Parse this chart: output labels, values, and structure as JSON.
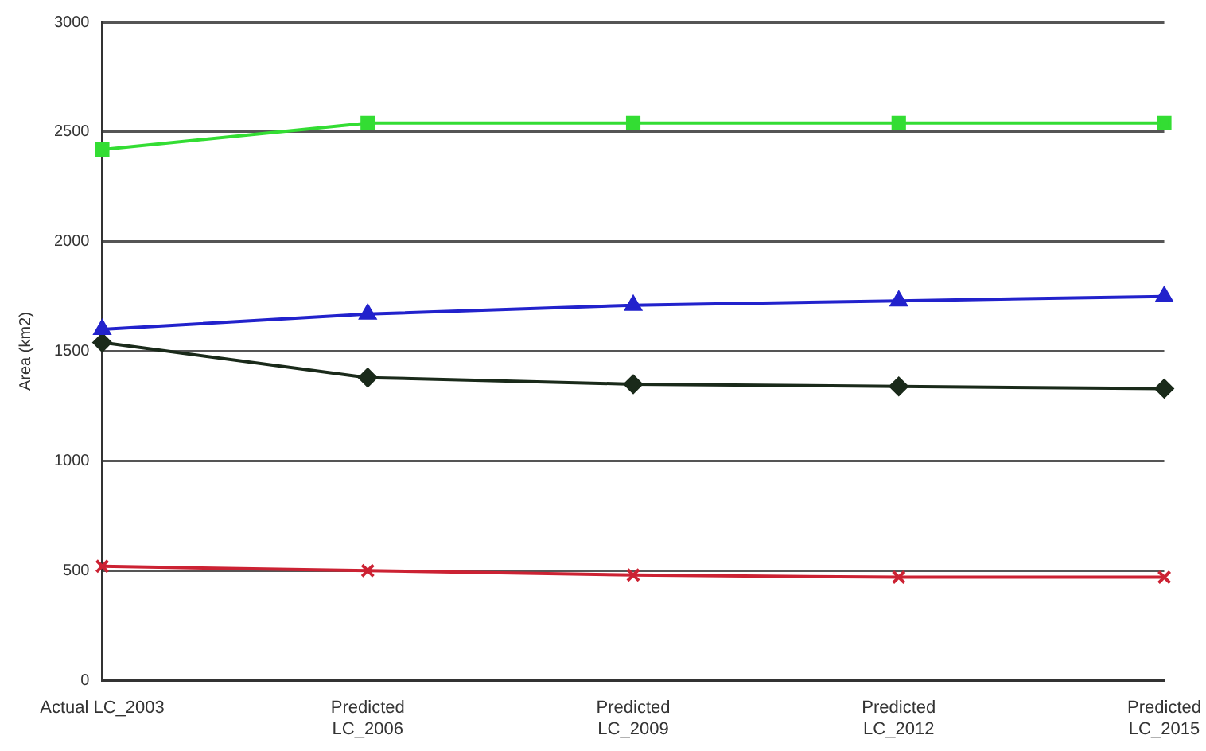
{
  "chart_data": {
    "type": "line",
    "ylabel": "Area (km2)",
    "categories": [
      "Actual LC_2003",
      "Predicted\nLC_2006",
      "Predicted\nLC_2009",
      "Predicted\nLC_2012",
      "Predicted\nLC_2015"
    ],
    "series": [
      {
        "color": "#33dd33",
        "marker": "square",
        "values": [
          2420,
          2540,
          2540,
          2540,
          2540
        ]
      },
      {
        "color": "#2222cc",
        "marker": "triangle",
        "values": [
          1600,
          1670,
          1710,
          1730,
          1750
        ]
      },
      {
        "color": "#1a2a1a",
        "marker": "diamond",
        "values": [
          1540,
          1380,
          1350,
          1340,
          1330
        ]
      },
      {
        "color": "#cc2233",
        "marker": "cross",
        "values": [
          520,
          500,
          480,
          470,
          470
        ]
      }
    ],
    "ylim": [
      0,
      3000
    ],
    "yticks": [
      0,
      500,
      1000,
      1500,
      2000,
      2500,
      3000
    ],
    "grid": "y",
    "legend": false,
    "line_style": "solid"
  }
}
